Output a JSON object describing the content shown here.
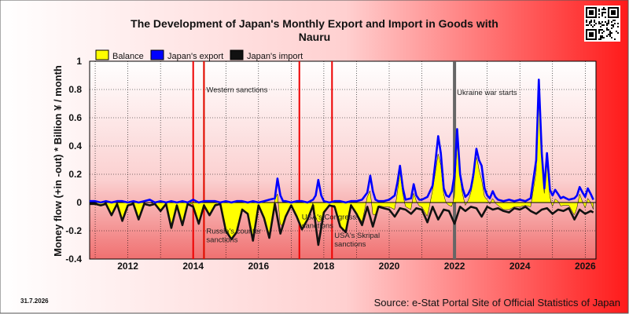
{
  "page": {
    "date_stamp": "31.7.2026",
    "source": "Source: e-Stat Portal Site of Official Statistics of Japan",
    "qr_label": "QR code"
  },
  "chart_data": {
    "type": "line",
    "title_lines": [
      "The Development of Japan's Monthly Export and Import in Goods with",
      "Nauru"
    ],
    "ylabel": "Money flow (+in -out) * Billion ¥ / month",
    "xlabel": "",
    "xlim": [
      2010.83,
      2026.33
    ],
    "ylim": [
      -0.4,
      1.0
    ],
    "y_ticks": [
      -0.4,
      -0.2,
      0,
      0.2,
      0.4,
      0.6,
      0.8,
      1
    ],
    "y_tick_labels": [
      "-0.4",
      "-0.2",
      "0",
      "0.2",
      "0.4",
      "0.6",
      "0.8",
      "1"
    ],
    "x_ticks": [
      2012,
      2014,
      2016,
      2018,
      2020,
      2022,
      2024,
      2026
    ],
    "x_tick_labels": [
      "2012",
      "2014",
      "2016",
      "2018",
      "2020",
      "2022",
      "2024",
      "2026"
    ],
    "grid": true,
    "legend": {
      "placement": "top-left",
      "entries": [
        {
          "label": "Balance",
          "color": "#ffff00"
        },
        {
          "label": "Japan's export",
          "color": "#0000ff"
        },
        {
          "label": "Japan's import",
          "color": "#111111"
        }
      ]
    },
    "colors": {
      "balance": "#ffff00",
      "export": "#0000ff",
      "import": "#111111",
      "event_red": "#ee0000",
      "event_green": "#00dd00",
      "event_gray": "#666666"
    },
    "events": [
      {
        "x": 2014.0,
        "color": "#ee0000",
        "label": "",
        "label_y": 0
      },
      {
        "x": 2014.33,
        "color": "#00dd00",
        "label": "Western sanctions",
        "label_y": 0.78
      },
      {
        "x": 2014.33,
        "color": "#ee0000",
        "label": "Russia's counter sanctions",
        "label_y": -0.22
      },
      {
        "x": 2017.25,
        "color": "#ee0000",
        "label": "USA's Congress sanctions",
        "label_y": -0.12
      },
      {
        "x": 2018.25,
        "color": "#ee0000",
        "label": "USA's Skripal sanctions",
        "label_y": -0.25
      },
      {
        "x": 2022.0,
        "color": "#666666",
        "label": "Ukraine war starts",
        "label_y": 0.76
      }
    ],
    "series": [
      {
        "name": "Japan's export",
        "x": [
          2010.83,
          2011.0,
          2011.17,
          2011.33,
          2011.5,
          2011.67,
          2011.83,
          2012.0,
          2012.17,
          2012.33,
          2012.5,
          2012.67,
          2012.83,
          2013.0,
          2013.17,
          2013.33,
          2013.5,
          2013.67,
          2013.83,
          2014.0,
          2014.17,
          2014.33,
          2014.5,
          2014.67,
          2014.83,
          2015.0,
          2015.17,
          2015.33,
          2015.5,
          2015.67,
          2015.83,
          2016.0,
          2016.17,
          2016.33,
          2016.5,
          2016.58,
          2016.67,
          2016.75,
          2016.83,
          2017.0,
          2017.17,
          2017.33,
          2017.5,
          2017.67,
          2017.75,
          2017.83,
          2017.92,
          2018.0,
          2018.17,
          2018.33,
          2018.5,
          2018.67,
          2018.83,
          2019.0,
          2019.17,
          2019.33,
          2019.42,
          2019.5,
          2019.58,
          2019.67,
          2019.83,
          2020.0,
          2020.17,
          2020.25,
          2020.33,
          2020.42,
          2020.5,
          2020.67,
          2020.75,
          2020.83,
          2020.92,
          2021.0,
          2021.17,
          2021.33,
          2021.42,
          2021.5,
          2021.58,
          2021.67,
          2021.75,
          2021.83,
          2021.92,
          2022.0,
          2022.08,
          2022.17,
          2022.25,
          2022.33,
          2022.42,
          2022.5,
          2022.58,
          2022.67,
          2022.75,
          2022.83,
          2022.92,
          2023.0,
          2023.08,
          2023.17,
          2023.25,
          2023.33,
          2023.5,
          2023.67,
          2023.83,
          2024.0,
          2024.17,
          2024.33,
          2024.5,
          2024.58,
          2024.67,
          2024.75,
          2024.83,
          2024.92,
          2025.0,
          2025.08,
          2025.17,
          2025.25,
          2025.33,
          2025.5,
          2025.67,
          2025.75,
          2025.83,
          2025.92,
          2026.0,
          2026.08,
          2026.17,
          2026.25
        ],
        "values": [
          0.01,
          0.01,
          0.0,
          0.01,
          0.0,
          0.01,
          0.01,
          0.0,
          0.01,
          0.0,
          0.01,
          0.02,
          0.0,
          0.01,
          0.0,
          0.01,
          0.0,
          0.01,
          0.0,
          0.02,
          0.0,
          0.01,
          0.01,
          0.01,
          0.0,
          0.01,
          0.0,
          0.01,
          0.01,
          0.0,
          0.01,
          0.0,
          0.01,
          0.02,
          0.03,
          0.17,
          0.05,
          0.01,
          0.01,
          0.0,
          0.01,
          0.01,
          0.0,
          0.02,
          0.05,
          0.16,
          0.05,
          0.01,
          0.0,
          0.01,
          0.01,
          0.0,
          0.01,
          0.01,
          0.02,
          0.07,
          0.19,
          0.08,
          0.02,
          0.01,
          0.01,
          0.02,
          0.05,
          0.14,
          0.26,
          0.1,
          0.02,
          0.03,
          0.13,
          0.05,
          0.02,
          0.02,
          0.04,
          0.12,
          0.3,
          0.47,
          0.35,
          0.1,
          0.05,
          0.04,
          0.08,
          0.2,
          0.52,
          0.2,
          0.1,
          0.04,
          0.06,
          0.1,
          0.2,
          0.38,
          0.3,
          0.26,
          0.1,
          0.05,
          0.03,
          0.08,
          0.04,
          0.02,
          0.01,
          0.02,
          0.01,
          0.02,
          0.01,
          0.03,
          0.3,
          0.87,
          0.35,
          0.1,
          0.35,
          0.09,
          0.05,
          0.09,
          0.06,
          0.03,
          0.04,
          0.02,
          0.03,
          0.05,
          0.11,
          0.07,
          0.04,
          0.1,
          0.06,
          0.02
        ]
      },
      {
        "name": "Japan's import",
        "x": [
          2010.83,
          2011.0,
          2011.17,
          2011.33,
          2011.5,
          2011.67,
          2011.83,
          2012.0,
          2012.17,
          2012.33,
          2012.5,
          2012.67,
          2012.83,
          2013.0,
          2013.17,
          2013.33,
          2013.5,
          2013.67,
          2013.83,
          2014.0,
          2014.17,
          2014.33,
          2014.5,
          2014.67,
          2014.83,
          2015.0,
          2015.17,
          2015.33,
          2015.5,
          2015.67,
          2015.83,
          2016.0,
          2016.17,
          2016.33,
          2016.5,
          2016.67,
          2016.83,
          2017.0,
          2017.17,
          2017.33,
          2017.5,
          2017.67,
          2017.83,
          2018.0,
          2018.17,
          2018.33,
          2018.5,
          2018.67,
          2018.83,
          2019.0,
          2019.17,
          2019.33,
          2019.5,
          2019.67,
          2019.83,
          2020.0,
          2020.17,
          2020.33,
          2020.5,
          2020.67,
          2020.83,
          2021.0,
          2021.17,
          2021.33,
          2021.5,
          2021.67,
          2021.83,
          2022.0,
          2022.17,
          2022.33,
          2022.5,
          2022.67,
          2022.83,
          2023.0,
          2023.17,
          2023.33,
          2023.5,
          2023.67,
          2023.83,
          2024.0,
          2024.17,
          2024.33,
          2024.5,
          2024.67,
          2024.83,
          2025.0,
          2025.17,
          2025.33,
          2025.5,
          2025.67,
          2025.83,
          2026.0,
          2026.17,
          2026.25
        ],
        "values": [
          -0.01,
          -0.01,
          -0.02,
          -0.01,
          -0.09,
          -0.01,
          -0.13,
          -0.02,
          -0.01,
          -0.12,
          -0.01,
          -0.02,
          -0.01,
          -0.06,
          -0.01,
          -0.18,
          -0.02,
          -0.16,
          -0.01,
          -0.03,
          -0.15,
          -0.02,
          -0.09,
          -0.02,
          -0.01,
          -0.2,
          -0.26,
          -0.21,
          -0.05,
          -0.08,
          -0.27,
          -0.02,
          -0.11,
          -0.25,
          -0.01,
          -0.22,
          -0.1,
          -0.02,
          -0.1,
          -0.19,
          -0.12,
          -0.02,
          -0.3,
          -0.07,
          -0.02,
          -0.03,
          -0.17,
          -0.21,
          -0.02,
          -0.08,
          -0.16,
          -0.03,
          -0.17,
          -0.03,
          -0.04,
          -0.05,
          -0.1,
          -0.04,
          -0.05,
          -0.08,
          -0.04,
          -0.05,
          -0.14,
          -0.03,
          -0.12,
          -0.05,
          -0.06,
          -0.15,
          -0.03,
          -0.06,
          -0.03,
          -0.04,
          -0.1,
          -0.03,
          -0.05,
          -0.04,
          -0.06,
          -0.07,
          -0.04,
          -0.05,
          -0.03,
          -0.06,
          -0.08,
          -0.05,
          -0.04,
          -0.08,
          -0.05,
          -0.06,
          -0.04,
          -0.12,
          -0.05,
          -0.08,
          -0.06,
          -0.07
        ]
      }
    ]
  }
}
